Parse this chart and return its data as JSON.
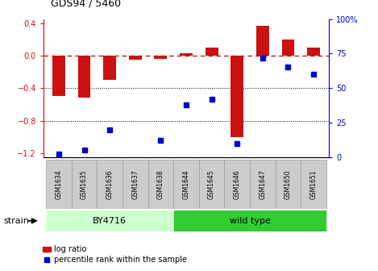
{
  "title": "GDS94 / 5460",
  "samples": [
    "GSM1634",
    "GSM1635",
    "GSM1636",
    "GSM1637",
    "GSM1638",
    "GSM1644",
    "GSM1645",
    "GSM1646",
    "GSM1647",
    "GSM1650",
    "GSM1651"
  ],
  "log_ratios": [
    -0.5,
    -0.52,
    -0.3,
    -0.05,
    -0.04,
    0.03,
    0.1,
    -1.0,
    0.37,
    0.2,
    0.1
  ],
  "percentile_ranks": [
    2,
    5,
    20,
    null,
    12,
    38,
    42,
    10,
    72,
    65,
    60
  ],
  "bar_color": "#cc1111",
  "dot_color": "#0000cc",
  "refline_color": "#cc1111",
  "grid_color": "#000000",
  "ylim_left": [
    -1.25,
    0.45
  ],
  "ylim_right": [
    0,
    100
  ],
  "yticks_left": [
    -1.2,
    -0.8,
    -0.4,
    0.0,
    0.4
  ],
  "yticks_right": [
    0,
    25,
    50,
    75,
    100
  ],
  "ylabel_right_labels": [
    "0",
    "25",
    "50",
    "75",
    "100%"
  ],
  "strain_groups": [
    {
      "label": "BY4716",
      "start": 0,
      "end": 5,
      "color": "#ccffcc"
    },
    {
      "label": "wild type",
      "start": 5,
      "end": 11,
      "color": "#33cc33"
    }
  ],
  "strain_label": "strain",
  "legend_bar_label": "log ratio",
  "legend_dot_label": "percentile rank within the sample",
  "background_color": "#ffffff",
  "plot_bg_color": "#ffffff",
  "tick_label_color_left": "#cc1111",
  "tick_label_color_right": "#0000cc",
  "label_box_color": "#cccccc",
  "label_box_edge": "#999999"
}
